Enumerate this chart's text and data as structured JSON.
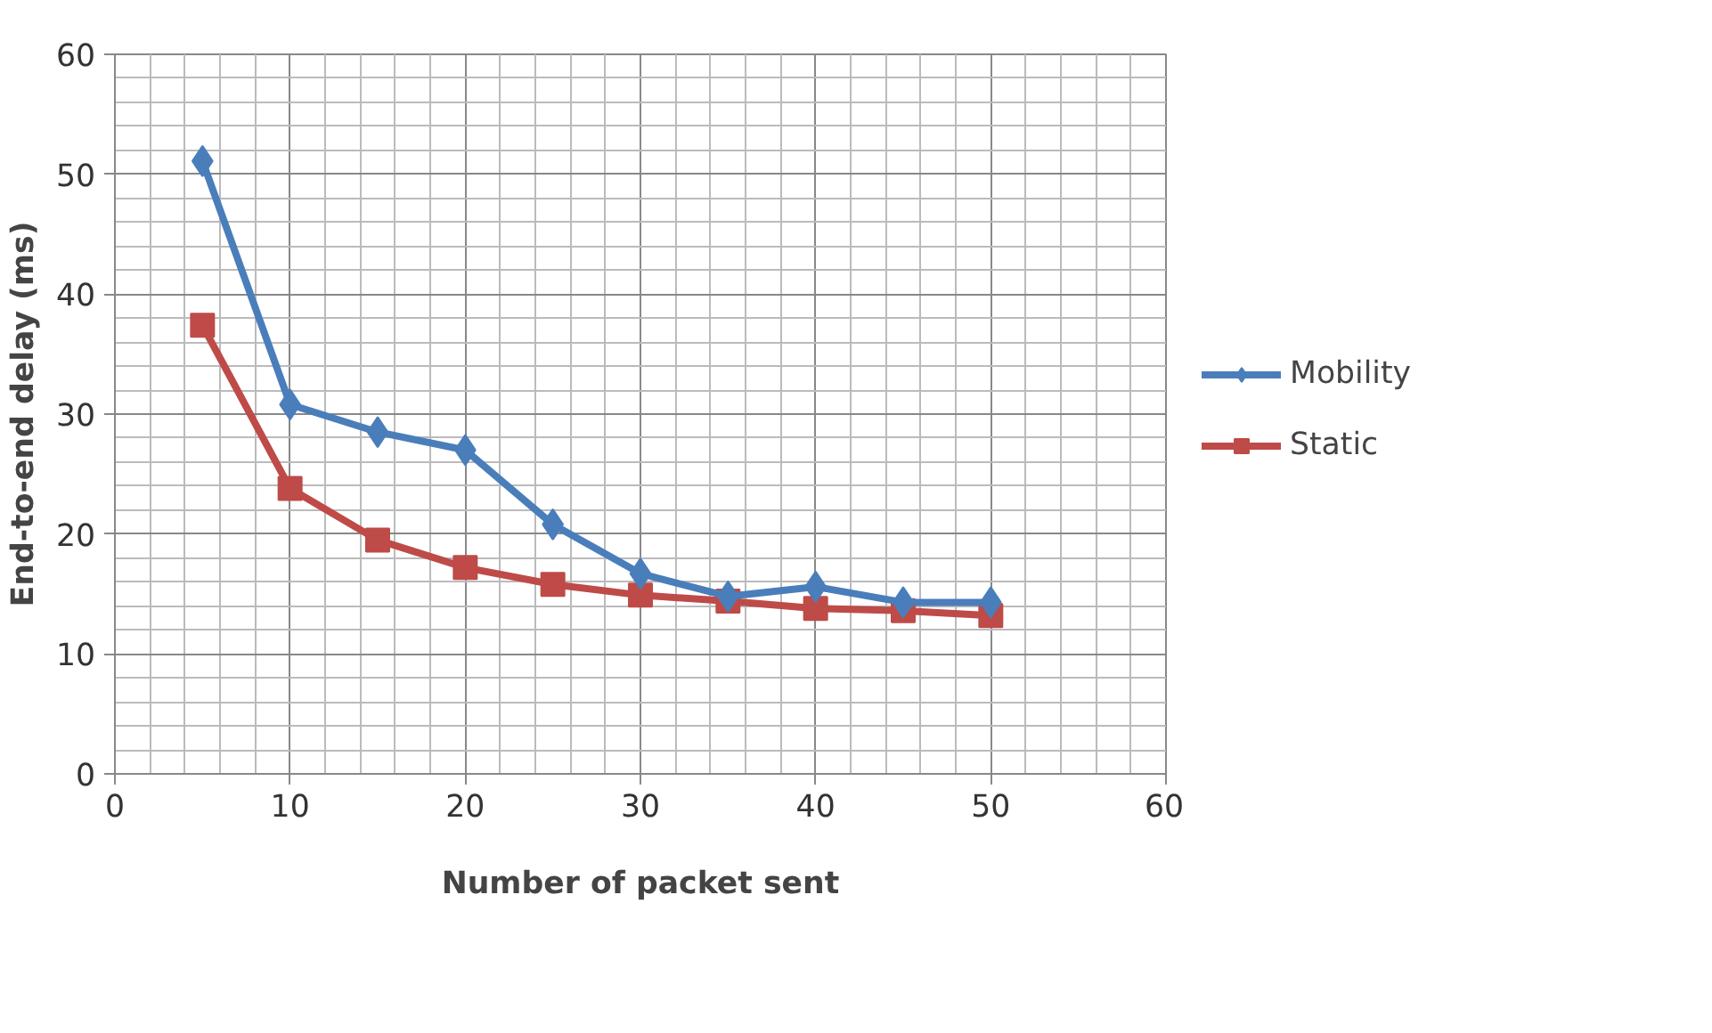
{
  "chart_data": {
    "type": "line",
    "xlabel": "Number of packet sent",
    "ylabel": "End-to-end delay (ms)",
    "x": [
      5,
      10,
      15,
      20,
      25,
      30,
      35,
      40,
      45,
      50
    ],
    "series": [
      {
        "name": "Mobility",
        "color": "#4a7ebb",
        "marker": "diamond",
        "values": [
          51.1,
          30.8,
          28.5,
          27.0,
          20.8,
          16.7,
          14.8,
          15.6,
          14.3,
          14.3
        ]
      },
      {
        "name": "Static",
        "color": "#be4b48",
        "marker": "square",
        "values": [
          37.4,
          23.8,
          19.5,
          17.2,
          15.8,
          14.9,
          14.4,
          13.8,
          13.6,
          13.2
        ]
      }
    ],
    "xlim": [
      0,
      60
    ],
    "ylim": [
      0,
      60
    ],
    "xticks": [
      0,
      10,
      20,
      30,
      40,
      50,
      60
    ],
    "yticks": [
      0,
      10,
      20,
      30,
      40,
      50,
      60
    ],
    "grid": true,
    "legend": "right",
    "line_style": "solid"
  }
}
